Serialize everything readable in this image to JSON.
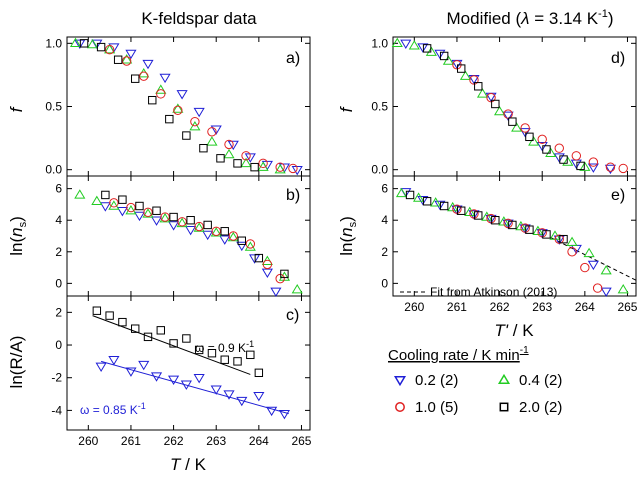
{
  "headers": {
    "left": "K-feldspar data",
    "right_prefix": "Modified (",
    "right_lambda": "λ",
    "right_mid": " = 3.14 K",
    "right_exp": "-1",
    "right_suffix": ")"
  },
  "panels": {
    "a": {
      "label": "a)"
    },
    "b": {
      "label": "b)"
    },
    "c": {
      "label": "c)"
    },
    "d": {
      "label": "d)"
    },
    "e": {
      "label": "e)"
    }
  },
  "axis_text": {
    "f": "f",
    "ln_open": "ln(",
    "ns_n": "n",
    "ns_sub": "s",
    "ln_close": ")",
    "lnRA": "ln(R/A)",
    "T": "T",
    "Tprime": "T'",
    "unit": " / K"
  },
  "legend": {
    "title": "Cooling rate / K min",
    "title_exp": "-1",
    "items": [
      {
        "label": "0.2 (2)",
        "color": "#1f1fd6",
        "marker": "triangle-down"
      },
      {
        "label": "0.4 (2)",
        "color": "#22cc22",
        "marker": "triangle-up"
      },
      {
        "label": "1.0 (5)",
        "color": "#e02020",
        "marker": "circle"
      },
      {
        "label": "2.0 (2)",
        "color": "#000000",
        "marker": "square"
      }
    ]
  },
  "annotations": {
    "omega_black": "ω = 0.9 K",
    "omega_black_exp": "-1",
    "omega_blue": "ω = 0.85 K",
    "omega_blue_exp": "-1",
    "fit_label": "Fit from Atkinson (2013)"
  },
  "chart_data": [
    {
      "panel": "a",
      "type": "scatter",
      "title": "K-feldspar data",
      "xlabel": "T / K",
      "ylabel": "f",
      "xlim": [
        259.5,
        265.2
      ],
      "ylim": [
        -0.05,
        1.05
      ],
      "xticks": [
        260,
        261,
        262,
        263,
        264,
        265
      ],
      "yticks": [
        0.0,
        0.5,
        1.0
      ],
      "series": [
        {
          "name": "0.2 (2)",
          "x": [
            259.8,
            260.2,
            260.6,
            261.0,
            261.4,
            261.8,
            262.2,
            262.6,
            263.0,
            263.4,
            263.8,
            264.2,
            264.6,
            264.9
          ],
          "y": [
            1.0,
            1.0,
            0.97,
            0.92,
            0.84,
            0.73,
            0.6,
            0.46,
            0.32,
            0.2,
            0.1,
            0.04,
            0.02,
            0.0
          ]
        },
        {
          "name": "0.4 (2)",
          "x": [
            259.7,
            260.1,
            260.5,
            260.9,
            261.3,
            261.7,
            262.1,
            262.5,
            262.9,
            263.3,
            263.7,
            264.1,
            264.5
          ],
          "y": [
            1.0,
            0.99,
            0.95,
            0.87,
            0.76,
            0.63,
            0.48,
            0.34,
            0.22,
            0.12,
            0.05,
            0.02,
            0.0
          ]
        },
        {
          "name": "1.0 (5)",
          "x": [
            260.5,
            260.9,
            261.3,
            261.7,
            262.1,
            262.5,
            262.9,
            263.3,
            263.7,
            264.1,
            264.5,
            264.8
          ],
          "y": [
            0.95,
            0.86,
            0.74,
            0.6,
            0.47,
            0.38,
            0.3,
            0.2,
            0.11,
            0.05,
            0.02,
            0.01
          ]
        },
        {
          "name": "2.0 (2)",
          "x": [
            259.9,
            260.3,
            260.7,
            261.1,
            261.5,
            261.9,
            262.3,
            262.7,
            263.1,
            263.5,
            263.9
          ],
          "y": [
            1.0,
            0.97,
            0.87,
            0.72,
            0.55,
            0.4,
            0.27,
            0.17,
            0.09,
            0.05,
            0.02
          ]
        }
      ]
    },
    {
      "panel": "b",
      "type": "scatter",
      "xlabel": "T / K",
      "ylabel": "ln(ns)",
      "xlim": [
        259.5,
        265.2
      ],
      "ylim": [
        -0.8,
        6.8
      ],
      "xticks": [
        260,
        261,
        262,
        263,
        264,
        265
      ],
      "yticks": [
        0,
        2,
        4,
        6
      ],
      "series": [
        {
          "name": "0.2 (2)",
          "x": [
            260.4,
            260.8,
            261.2,
            261.6,
            262.0,
            262.4,
            262.8,
            263.2,
            263.6,
            263.9,
            264.2,
            264.4
          ],
          "y": [
            4.9,
            4.6,
            4.3,
            4.0,
            3.7,
            3.4,
            3.1,
            2.8,
            2.4,
            1.6,
            0.7,
            -0.5
          ]
        },
        {
          "name": "0.4 (2)",
          "x": [
            259.8,
            260.2,
            260.6,
            261.0,
            261.4,
            261.8,
            262.2,
            262.6,
            263.0,
            263.4,
            263.8,
            264.2,
            264.6,
            264.9
          ],
          "y": [
            5.6,
            5.2,
            4.9,
            4.6,
            4.4,
            4.1,
            3.8,
            3.5,
            3.2,
            2.9,
            2.3,
            1.4,
            0.4,
            -0.4
          ]
        },
        {
          "name": "1.0 (5)",
          "x": [
            260.6,
            261.0,
            261.4,
            261.8,
            262.2,
            262.6,
            263.0,
            263.4,
            263.8,
            264.2,
            264.5
          ],
          "y": [
            5.1,
            4.8,
            4.5,
            4.2,
            3.9,
            3.6,
            3.3,
            3.0,
            2.5,
            1.2,
            0.3
          ]
        },
        {
          "name": "2.0 (2)",
          "x": [
            260.4,
            260.8,
            261.2,
            261.6,
            262.0,
            262.4,
            262.8,
            263.2,
            263.6,
            264.0,
            264.6
          ],
          "y": [
            5.6,
            5.3,
            4.9,
            4.6,
            4.2,
            4.0,
            3.7,
            3.3,
            2.7,
            1.6,
            0.6
          ]
        }
      ]
    },
    {
      "panel": "c",
      "type": "scatter",
      "xlabel": "T / K",
      "ylabel": "ln(R/A)",
      "xlim": [
        259.5,
        265.2
      ],
      "ylim": [
        -5.2,
        3.0
      ],
      "xticks": [
        260,
        261,
        262,
        263,
        264,
        265
      ],
      "yticks": [
        -4,
        -2,
        0,
        2
      ],
      "series": [
        {
          "name": "0.2 (2)",
          "x": [
            260.3,
            260.6,
            261.0,
            261.3,
            261.6,
            262.0,
            262.3,
            262.6,
            263.0,
            263.3,
            263.6,
            264.0,
            264.3,
            264.6
          ],
          "y": [
            -1.3,
            -0.9,
            -1.6,
            -1.2,
            -1.9,
            -2.1,
            -2.4,
            -2.0,
            -2.7,
            -3.0,
            -3.4,
            -3.1,
            -4.0,
            -4.2
          ]
        },
        {
          "name": "2.0 (2)",
          "x": [
            260.2,
            260.5,
            260.8,
            261.1,
            261.4,
            261.7,
            262.0,
            262.3,
            262.6,
            262.9,
            263.2,
            263.5,
            263.8,
            264.0
          ],
          "y": [
            2.1,
            1.8,
            1.4,
            1.0,
            0.5,
            0.9,
            0.1,
            0.4,
            -0.3,
            -0.5,
            -0.9,
            -1.0,
            -0.6,
            -1.7
          ]
        }
      ],
      "fits": [
        {
          "series": "2.0 (2)",
          "x": [
            260.1,
            263.8
          ],
          "y": [
            1.8,
            -1.8
          ]
        },
        {
          "series": "0.2 (2)",
          "x": [
            260.3,
            264.7
          ],
          "y": [
            -1.0,
            -4.2
          ]
        }
      ]
    },
    {
      "panel": "d",
      "type": "scatter",
      "title": "Modified (λ = 3.14 K-1)",
      "xlabel": "T' / K",
      "ylabel": "f",
      "xlim": [
        259.5,
        265.2
      ],
      "ylim": [
        -0.05,
        1.05
      ],
      "xticks": [
        260,
        261,
        262,
        263,
        264,
        265
      ],
      "yticks": [
        0.0,
        0.5,
        1.0
      ],
      "series": [
        {
          "name": "0.2 (2)",
          "x": [
            259.8,
            260.2,
            260.6,
            261.0,
            261.4,
            261.8,
            262.2,
            262.6,
            263.0,
            263.4,
            263.8,
            264.2,
            264.6
          ],
          "y": [
            1.0,
            0.97,
            0.92,
            0.84,
            0.72,
            0.58,
            0.43,
            0.3,
            0.19,
            0.1,
            0.05,
            0.02,
            0.01
          ]
        },
        {
          "name": "0.4 (2)",
          "x": [
            259.6,
            260.0,
            260.4,
            260.8,
            261.2,
            261.6,
            262.0,
            262.4,
            262.8,
            263.2,
            263.6,
            264.0
          ],
          "y": [
            1.0,
            0.98,
            0.93,
            0.86,
            0.74,
            0.6,
            0.46,
            0.33,
            0.22,
            0.13,
            0.06,
            0.02
          ]
        },
        {
          "name": "1.0 (5)",
          "x": [
            261.0,
            261.4,
            261.8,
            262.2,
            262.6,
            263.0,
            263.4,
            263.8,
            264.2,
            264.6,
            264.9
          ],
          "y": [
            0.83,
            0.71,
            0.57,
            0.44,
            0.33,
            0.24,
            0.17,
            0.11,
            0.06,
            0.02,
            0.01
          ]
        },
        {
          "name": "2.0 (2)",
          "x": [
            260.3,
            260.7,
            261.1,
            261.5,
            261.9,
            262.3,
            262.7,
            263.1,
            263.5,
            263.9
          ],
          "y": [
            0.96,
            0.9,
            0.8,
            0.66,
            0.52,
            0.38,
            0.26,
            0.16,
            0.08,
            0.03
          ]
        }
      ]
    },
    {
      "panel": "e",
      "type": "scatter",
      "xlabel": "T' / K",
      "ylabel": "ln(ns)",
      "xlim": [
        259.5,
        265.2
      ],
      "ylim": [
        -0.8,
        6.8
      ],
      "xticks": [
        260,
        261,
        262,
        263,
        264,
        265
      ],
      "yticks": [
        0,
        2,
        4,
        6
      ],
      "series": [
        {
          "name": "0.2 (2)",
          "x": [
            259.8,
            260.2,
            260.6,
            261.0,
            261.4,
            261.8,
            262.2,
            262.6,
            263.0,
            263.4,
            263.8,
            264.2,
            264.5
          ],
          "y": [
            5.8,
            5.3,
            5.0,
            4.7,
            4.4,
            4.1,
            3.8,
            3.5,
            3.2,
            2.8,
            2.2,
            1.2,
            -0.5
          ]
        },
        {
          "name": "0.4 (2)",
          "x": [
            259.7,
            260.1,
            260.5,
            260.9,
            261.3,
            261.7,
            262.1,
            262.5,
            262.9,
            263.3,
            263.7,
            264.1,
            264.5,
            264.9
          ],
          "y": [
            5.7,
            5.4,
            5.1,
            4.8,
            4.5,
            4.2,
            3.9,
            3.6,
            3.3,
            3.0,
            2.6,
            1.9,
            0.8,
            -0.4
          ]
        },
        {
          "name": "1.0 (5)",
          "x": [
            261.0,
            261.4,
            261.8,
            262.2,
            262.6,
            263.0,
            263.4,
            263.7,
            264.0,
            264.3
          ],
          "y": [
            4.7,
            4.4,
            4.1,
            3.8,
            3.5,
            3.2,
            2.8,
            2.0,
            1.0,
            -0.3
          ]
        },
        {
          "name": "2.0 (2)",
          "x": [
            259.9,
            260.3,
            260.7,
            261.1,
            261.5,
            261.9,
            262.3,
            262.7,
            263.1,
            263.5
          ],
          "y": [
            5.6,
            5.2,
            4.9,
            4.6,
            4.3,
            4.0,
            3.7,
            3.4,
            3.1,
            2.8
          ]
        }
      ],
      "fits": [
        {
          "series": "Fit from Atkinson (2013)",
          "style": "dashed",
          "x": [
            263.2,
            265.2
          ],
          "y": [
            2.9,
            0.2
          ]
        }
      ]
    }
  ]
}
